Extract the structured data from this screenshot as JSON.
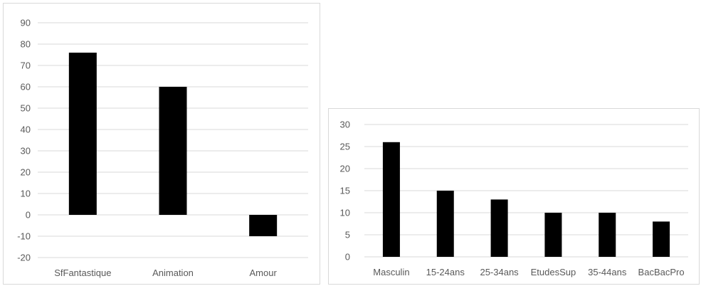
{
  "chart_data": [
    {
      "type": "bar",
      "categories": [
        "SfFantastique",
        "Animation",
        "Amour"
      ],
      "values": [
        76,
        60,
        -10
      ],
      "ylim": [
        -20,
        90
      ],
      "yticks": [
        -20,
        -10,
        0,
        10,
        20,
        30,
        40,
        50,
        60,
        70,
        80,
        90
      ],
      "title": "",
      "xlabel": "",
      "ylabel": "",
      "grid": true,
      "bar_color": "#000000",
      "grid_color": "#d9d9d9"
    },
    {
      "type": "bar",
      "categories": [
        "Masculin",
        "15-24ans",
        "25-34ans",
        "EtudesSup",
        "35-44ans",
        "BacBacPro"
      ],
      "values": [
        26,
        15,
        13,
        10,
        10,
        8
      ],
      "ylim": [
        0,
        30
      ],
      "yticks": [
        0,
        5,
        10,
        15,
        20,
        25,
        30
      ],
      "title": "",
      "xlabel": "",
      "ylabel": "",
      "grid": true,
      "bar_color": "#000000",
      "grid_color": "#d9d9d9"
    }
  ]
}
